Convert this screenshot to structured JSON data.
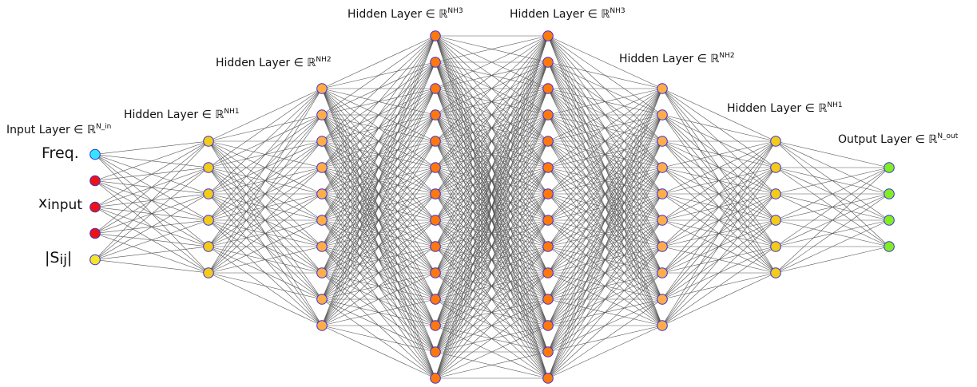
{
  "colors": {
    "edge": "#555555",
    "node_stroke": "#3b2fd6",
    "cyan": "#33e6ff",
    "red": "#ee1111",
    "yellow": "#f5e52a",
    "gold": "#f2cc18",
    "light_orange": "#ffad48",
    "orange": "#ff780e",
    "green": "#82ee22"
  },
  "layers": [
    {
      "label_prefix": "Input Layer ∈ ",
      "set": "ℝ",
      "dim": "N_in",
      "nodes": [
        "cyan",
        "red",
        "red",
        "red",
        "yellow"
      ]
    },
    {
      "label_prefix": "Hidden Layer ∈ ",
      "set": "ℝ",
      "dim": "NH1",
      "nodes": [
        "gold",
        "gold",
        "gold",
        "gold",
        "gold",
        "gold"
      ]
    },
    {
      "label_prefix": "Hidden Layer ∈ ",
      "set": "ℝ",
      "dim": "NH2",
      "nodes": [
        "light_orange",
        "light_orange",
        "light_orange",
        "light_orange",
        "light_orange",
        "light_orange",
        "light_orange",
        "light_orange",
        "light_orange",
        "light_orange"
      ]
    },
    {
      "label_prefix": "Hidden Layer ∈ ",
      "set": "ℝ",
      "dim": "NH3",
      "nodes": [
        "orange",
        "orange",
        "orange",
        "orange",
        "orange",
        "orange",
        "orange",
        "orange",
        "orange",
        "orange",
        "orange",
        "orange",
        "orange",
        "orange"
      ]
    },
    {
      "label_prefix": "Hidden Layer ∈ ",
      "set": "ℝ",
      "dim": "NH3",
      "nodes": [
        "orange",
        "orange",
        "orange",
        "orange",
        "orange",
        "orange",
        "orange",
        "orange",
        "orange",
        "orange",
        "orange",
        "orange",
        "orange",
        "orange"
      ]
    },
    {
      "label_prefix": "Hidden Layer ∈ ",
      "set": "ℝ",
      "dim": "NH2",
      "nodes": [
        "light_orange",
        "light_orange",
        "light_orange",
        "light_orange",
        "light_orange",
        "light_orange",
        "light_orange",
        "light_orange",
        "light_orange",
        "light_orange"
      ]
    },
    {
      "label_prefix": "Hidden Layer ∈ ",
      "set": "ℝ",
      "dim": "NH1",
      "nodes": [
        "gold",
        "gold",
        "gold",
        "gold",
        "gold",
        "gold"
      ]
    },
    {
      "label_prefix": "Output Layer ∈ ",
      "set": "ℝ",
      "dim": "N_out",
      "nodes": [
        "green",
        "green",
        "green",
        "green"
      ]
    }
  ],
  "inputs": {
    "freq": "Freq.",
    "x_main": "x",
    "x_sub": "input",
    "s_left": "|S",
    "s_sub": "ij",
    "s_right": "|"
  }
}
